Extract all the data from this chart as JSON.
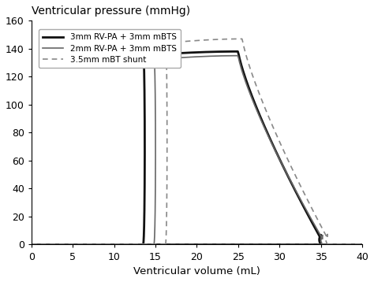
{
  "title": "Ventricular pressure (mmHg)",
  "xlabel": "Ventricular volume (mL)",
  "xlim": [
    0,
    40
  ],
  "ylim": [
    0,
    160
  ],
  "xticks": [
    0,
    5,
    10,
    15,
    20,
    25,
    30,
    35,
    40
  ],
  "yticks": [
    0,
    20,
    40,
    60,
    80,
    100,
    120,
    140,
    160
  ],
  "legend_labels": [
    "3mm RV-PA + 3mm mBTS",
    "2mm RV-PA + 3mm mBTS",
    "3.5mm mBT shunt"
  ],
  "curves": [
    {
      "label": "3mm RV-PA + 3mm mBTS",
      "color": "#111111",
      "linewidth": 2.0,
      "linestyle": "solid",
      "es_vol": 13.5,
      "ed_vol": 35.0,
      "peak_pressure": 138,
      "peak_vol": 25.0
    },
    {
      "label": "2mm RV-PA + 3mm mBTS",
      "color": "#666666",
      "linewidth": 1.2,
      "linestyle": "solid",
      "es_vol": 14.8,
      "ed_vol": 35.2,
      "peak_pressure": 135,
      "peak_vol": 25.0
    },
    {
      "label": "3.5mm mBT shunt",
      "color": "#888888",
      "linewidth": 1.2,
      "linestyle": "dashed",
      "es_vol": 16.2,
      "ed_vol": 35.8,
      "peak_pressure": 147,
      "peak_vol": 25.5
    }
  ],
  "background_color": "#ffffff",
  "title_fontsize": 10,
  "label_fontsize": 9.5,
  "tick_fontsize": 9
}
